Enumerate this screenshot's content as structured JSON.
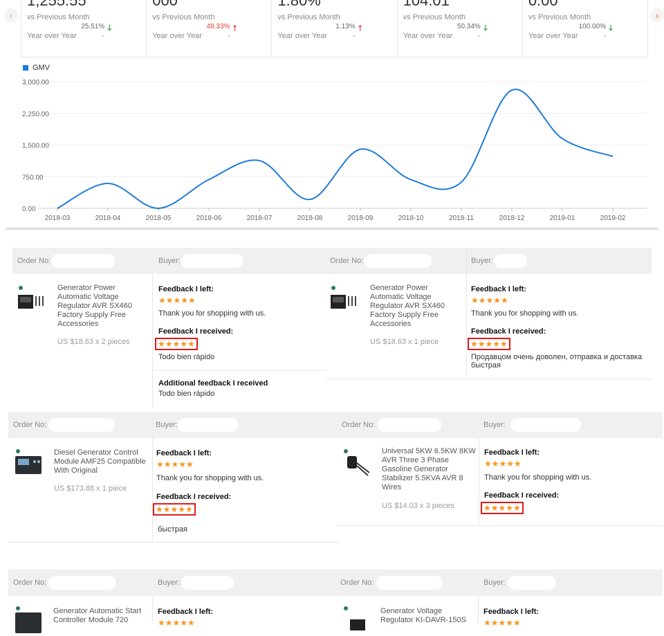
{
  "kpis": [
    {
      "value": "1,255.55",
      "vs_label": "vs Previous Month",
      "pct": "25.51%",
      "dir": "down",
      "yoy_label": "Year over Year",
      "yoy": "-"
    },
    {
      "value": "000",
      "vs_label": "vs Previous Month",
      "pct": "48.33%",
      "dir": "up",
      "yoy_label": "Year over Year",
      "yoy": "-"
    },
    {
      "value": "1.80%",
      "vs_label": "vs Previous Month",
      "pct": "1.13%",
      "dir": "up",
      "yoy_label": "Year over Year",
      "yoy": "-"
    },
    {
      "value": "104.01",
      "vs_label": "vs Previous Month",
      "pct": "50.34%",
      "dir": "down",
      "yoy_label": "Year over Year",
      "yoy": "-"
    },
    {
      "value": "0.00",
      "vs_label": "vs Previous Month",
      "pct": "100.00%",
      "dir": "down",
      "yoy_label": "Year over Year",
      "yoy": "-"
    }
  ],
  "nav": {
    "prev": "‹",
    "next": "›"
  },
  "chart_data": {
    "type": "line",
    "legend": "GMV",
    "color": "#1f7bd9",
    "categories": [
      "2018-03",
      "2018-04",
      "2018-05",
      "2018-06",
      "2018-07",
      "2018-08",
      "2018-09",
      "2018-10",
      "2018-11",
      "2018-12",
      "2019-01",
      "2019-02"
    ],
    "values": [
      0,
      590,
      0,
      680,
      1130,
      210,
      1400,
      680,
      620,
      2800,
      1650,
      1230
    ],
    "yticks": [
      "0.00",
      "750.00",
      "1,500.00",
      "2,250.00",
      "3,000.00"
    ],
    "ylim": [
      0,
      3000
    ]
  },
  "labels": {
    "order_no": "Order No:",
    "buyer": "Buyer:",
    "fb_left": "Feedback I left:",
    "fb_received": "Feedback I received:",
    "additional": "Additional feedback I received",
    "stars": "★★★★★"
  },
  "orders": [
    {
      "product": "Generator Power Automatic Voltage Regulator AVR SX460 Factory Supply Free Accessories",
      "price": "US $18.63 x 2 pieces",
      "left_text": "Thank you for shopping with us.",
      "received_text": "Todo bien rápido",
      "additional_text": "Todo bien rápido"
    },
    {
      "product": "Generator Power Automatic Voltage Regulator AVR SX460 Factory Supply Free Accessories",
      "price": "US $18.63 x 1 piece",
      "left_text": "Thank you for shopping with us.",
      "received_text": "Продавцом очень доволен, отправка и доставка быстрая"
    },
    {
      "product": "Diesel Generator Control Module AMF25 Compatible With Original",
      "price": "US $173.88 x 1 piece",
      "left_text": "Thank you for shopping with us.",
      "received_text": "быстрая"
    },
    {
      "product": "Universal 5KW 6.5KW 8KW AVR Three 3 Phase Gasoline Generator Stabilizer 5.5KVA AVR 8 Wires",
      "price": "US $14.03 x 3 pieces",
      "left_text": "Thank you for shopping with us."
    },
    {
      "product": "Generator Automatic Start Controller Module 720"
    },
    {
      "product": "Generator Voltage Regulator KI-DAVR-150S"
    }
  ]
}
